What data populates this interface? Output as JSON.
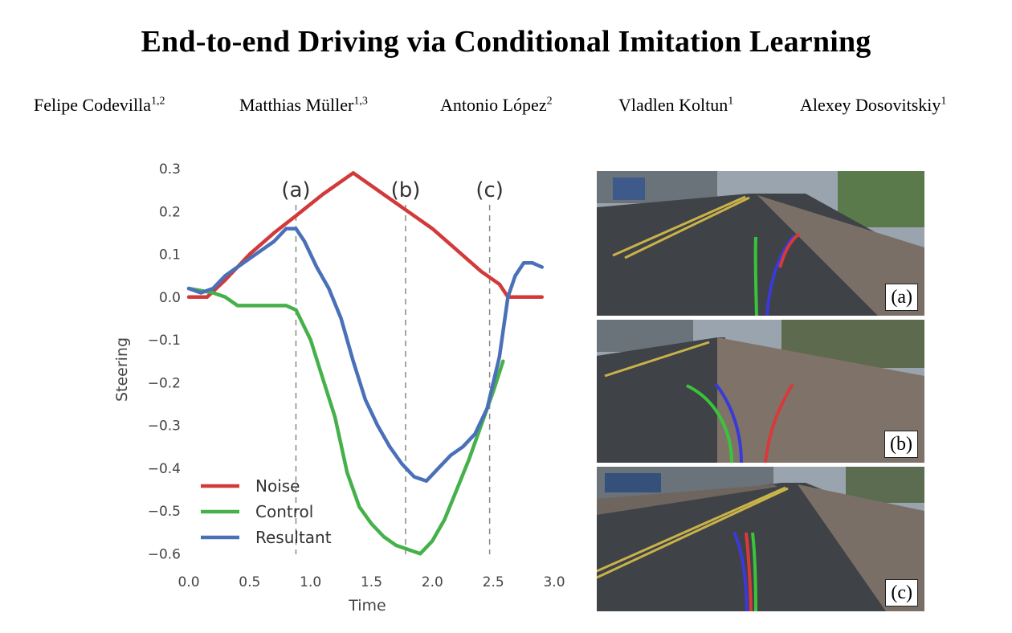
{
  "paper": {
    "title": "End-to-end Driving via Conditional Imitation Learning",
    "authors": [
      {
        "name": "Felipe Codevilla",
        "affil": "1,2"
      },
      {
        "name": "Matthias Müller",
        "affil": "1,3"
      },
      {
        "name": "Antonio López",
        "affil": "2"
      },
      {
        "name": "Vladlen Koltun",
        "affil": "1"
      },
      {
        "name": "Alexey Dosovitskiy",
        "affil": "1"
      }
    ]
  },
  "chart_data": {
    "type": "line",
    "xlabel": "Time",
    "ylabel": "Steering",
    "xlim": [
      0.0,
      3.0
    ],
    "ylim": [
      -0.62,
      0.3
    ],
    "xticks": [
      "0.0",
      "0.5",
      "1.0",
      "1.5",
      "2.0",
      "2.5",
      "3.0"
    ],
    "yticks": [
      "0.3",
      "0.2",
      "0.1",
      "0.0",
      "−0.1",
      "−0.2",
      "−0.3",
      "−0.4",
      "−0.5",
      "−0.6"
    ],
    "grid": false,
    "legend_position": "lower-left",
    "annotations": [
      {
        "label": "(a)",
        "x": 0.88
      },
      {
        "label": "(b)",
        "x": 1.78
      },
      {
        "label": "(c)",
        "x": 2.47
      }
    ],
    "series": [
      {
        "name": "Noise",
        "color": "#d23a3a",
        "x": [
          0.0,
          0.15,
          0.3,
          0.5,
          0.7,
          0.88,
          1.1,
          1.35,
          1.6,
          1.8,
          2.0,
          2.2,
          2.4,
          2.55,
          2.62,
          2.9
        ],
        "y": [
          0.0,
          0.0,
          0.04,
          0.1,
          0.15,
          0.19,
          0.24,
          0.29,
          0.24,
          0.2,
          0.16,
          0.11,
          0.06,
          0.03,
          0.0,
          0.0
        ]
      },
      {
        "name": "Control",
        "color": "#46b04a",
        "x": [
          0.0,
          0.2,
          0.3,
          0.4,
          0.6,
          0.8,
          0.88,
          1.0,
          1.1,
          1.2,
          1.3,
          1.4,
          1.5,
          1.6,
          1.7,
          1.8,
          1.9,
          2.0,
          2.1,
          2.2,
          2.3,
          2.4,
          2.5,
          2.58
        ],
        "y": [
          0.02,
          0.01,
          0.0,
          -0.02,
          -0.02,
          -0.02,
          -0.03,
          -0.1,
          -0.19,
          -0.28,
          -0.41,
          -0.49,
          -0.53,
          -0.56,
          -0.58,
          -0.59,
          -0.6,
          -0.57,
          -0.52,
          -0.45,
          -0.38,
          -0.3,
          -0.22,
          -0.15
        ]
      },
      {
        "name": "Resultant",
        "color": "#4a70b8",
        "x": [
          0.0,
          0.1,
          0.2,
          0.3,
          0.4,
          0.5,
          0.6,
          0.7,
          0.8,
          0.88,
          0.95,
          1.05,
          1.15,
          1.25,
          1.35,
          1.45,
          1.55,
          1.65,
          1.75,
          1.85,
          1.95,
          2.05,
          2.15,
          2.25,
          2.35,
          2.45,
          2.55,
          2.62,
          2.68,
          2.75,
          2.82,
          2.9
        ],
        "y": [
          0.02,
          0.01,
          0.02,
          0.05,
          0.07,
          0.09,
          0.11,
          0.13,
          0.16,
          0.16,
          0.13,
          0.07,
          0.02,
          -0.05,
          -0.15,
          -0.24,
          -0.3,
          -0.35,
          -0.39,
          -0.42,
          -0.43,
          -0.4,
          -0.37,
          -0.35,
          -0.32,
          -0.26,
          -0.14,
          0.0,
          0.05,
          0.08,
          0.08,
          0.07
        ]
      }
    ]
  },
  "panels": [
    {
      "label": "(a)"
    },
    {
      "label": "(b)"
    },
    {
      "label": "(c)"
    }
  ]
}
